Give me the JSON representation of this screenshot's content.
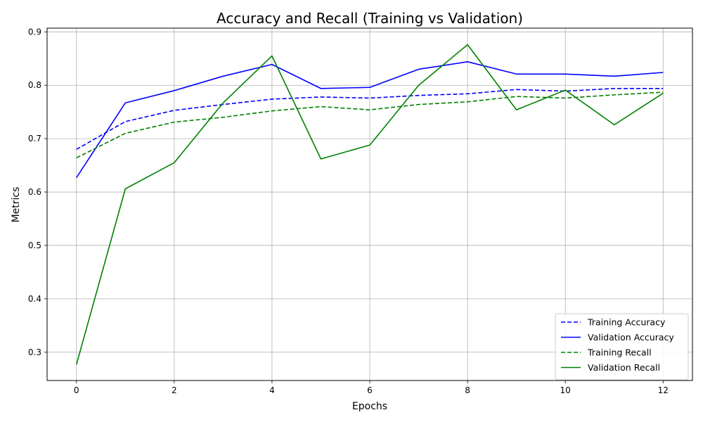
{
  "chart_data": {
    "type": "line",
    "title": "Accuracy and Recall (Training vs Validation)",
    "xlabel": "Epochs",
    "ylabel": "Metrics",
    "xlim": [
      -0.6,
      12.6
    ],
    "ylim": [
      0.247,
      0.907
    ],
    "xticks": [
      0,
      2,
      4,
      6,
      8,
      10,
      12
    ],
    "yticks": [
      0.3,
      0.4,
      0.5,
      0.6,
      0.7,
      0.8,
      0.9
    ],
    "grid": true,
    "legend_position": "lower-right",
    "x": [
      0,
      1,
      2,
      3,
      4,
      5,
      6,
      7,
      8,
      9,
      10,
      11,
      12
    ],
    "series": [
      {
        "name": "Training Accuracy",
        "color": "#0000ff",
        "style": "dashed",
        "values": [
          0.68,
          0.732,
          0.753,
          0.764,
          0.774,
          0.778,
          0.776,
          0.781,
          0.784,
          0.792,
          0.789,
          0.794,
          0.794
        ]
      },
      {
        "name": "Validation Accuracy",
        "color": "#0000ff",
        "style": "solid",
        "values": [
          0.627,
          0.767,
          0.79,
          0.817,
          0.839,
          0.794,
          0.796,
          0.83,
          0.844,
          0.821,
          0.821,
          0.817,
          0.824
        ]
      },
      {
        "name": "Training Recall",
        "color": "#008000",
        "style": "dashed",
        "values": [
          0.664,
          0.71,
          0.731,
          0.74,
          0.752,
          0.76,
          0.754,
          0.764,
          0.769,
          0.779,
          0.776,
          0.782,
          0.787
        ]
      },
      {
        "name": "Validation Recall",
        "color": "#008000",
        "style": "solid",
        "values": [
          0.277,
          0.606,
          0.655,
          0.767,
          0.855,
          0.662,
          0.688,
          0.8,
          0.876,
          0.754,
          0.791,
          0.726,
          0.785
        ]
      }
    ]
  }
}
